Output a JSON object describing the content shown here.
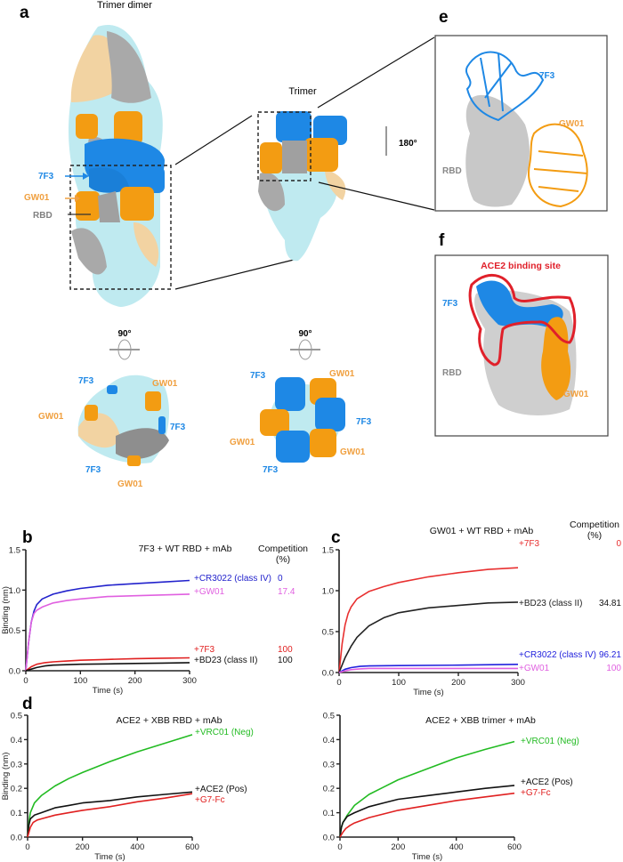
{
  "panels": {
    "a": {
      "letter": "a",
      "trimer_dimer": "Trimer dimer",
      "trimer": "Trimer",
      "rot180": "180°",
      "rot90_left": "90°",
      "rot90_right": "90°",
      "side_labels": {
        "ab1": "7F3",
        "ab2": "GW01",
        "rbd": "RBD"
      },
      "top_left_labels": [
        "7F3",
        "GW01",
        "GW01",
        "7F3",
        "7F3",
        "GW01"
      ],
      "top_right_labels": [
        "7F3",
        "GW01",
        "7F3",
        "GW01",
        "GW01",
        "7F3"
      ]
    },
    "e": {
      "letter": "e",
      "ab1": "7F3",
      "ab2": "GW01",
      "rbd": "RBD"
    },
    "f": {
      "letter": "f",
      "site": "ACE2 binding site",
      "ab1": "7F3",
      "ab2": "GW01",
      "rbd": "RBD"
    }
  },
  "colors": {
    "7F3": "#1e88e5",
    "GW01": "#f39c12",
    "RBD": "#9e9e9e",
    "spike_a": "#bfeaf0",
    "spike_b": "#f2d3a2",
    "site": "#e0202a"
  },
  "chart_data": [
    {
      "id": "b",
      "letter": "b",
      "type": "line",
      "title": "7F3 + WT RBD + mAb",
      "xlabel": "Time (s)",
      "ylabel": "Binding (nm)",
      "xlim": [
        0,
        300
      ],
      "ylim": [
        0,
        1.5
      ],
      "xticks": [
        "0",
        "100",
        "200",
        "300"
      ],
      "yticks": [
        "0.0",
        "0.5",
        "1.0",
        "1.5"
      ],
      "competition_header": [
        "Competition",
        "(%)"
      ],
      "series": [
        {
          "name": "+CR3022 (class IV)",
          "color": "#2222cc",
          "competition": "0",
          "x": [
            0,
            5,
            10,
            15,
            20,
            30,
            50,
            75,
            100,
            150,
            200,
            250,
            300
          ],
          "y": [
            0,
            0.35,
            0.6,
            0.74,
            0.82,
            0.89,
            0.95,
            0.99,
            1.02,
            1.06,
            1.08,
            1.1,
            1.12
          ]
        },
        {
          "name": "+GW01",
          "color": "#e060e0",
          "competition": "17.4",
          "x": [
            0,
            5,
            10,
            15,
            20,
            30,
            50,
            75,
            100,
            150,
            200,
            250,
            300
          ],
          "y": [
            0,
            0.35,
            0.6,
            0.71,
            0.75,
            0.79,
            0.84,
            0.87,
            0.89,
            0.92,
            0.93,
            0.94,
            0.95
          ]
        },
        {
          "name": "+7F3",
          "color": "#e02020",
          "competition": "100",
          "x": [
            0,
            10,
            20,
            35,
            50,
            75,
            100,
            150,
            200,
            250,
            300
          ],
          "y": [
            0,
            0.05,
            0.08,
            0.1,
            0.11,
            0.12,
            0.13,
            0.14,
            0.15,
            0.155,
            0.16
          ]
        },
        {
          "name": "+BD23 (class II)",
          "color": "#111111",
          "competition": "100",
          "x": [
            0,
            10,
            20,
            35,
            50,
            75,
            100,
            150,
            200,
            250,
            300
          ],
          "y": [
            0,
            0.02,
            0.04,
            0.06,
            0.07,
            0.075,
            0.08,
            0.085,
            0.09,
            0.095,
            0.1
          ]
        }
      ]
    },
    {
      "id": "c",
      "letter": "c",
      "type": "line",
      "title": "GW01 + WT RBD + mAb",
      "xlabel": "Time (s)",
      "ylabel": "",
      "xlim": [
        0,
        300
      ],
      "ylim": [
        0,
        1.5
      ],
      "xticks": [
        "0",
        "100",
        "200",
        "300"
      ],
      "yticks": [
        "0.0",
        "0.5",
        "1.0",
        "1.5"
      ],
      "competition_header": [
        "Competition",
        "(%)"
      ],
      "series": [
        {
          "name": "+7F3",
          "color": "#e83030",
          "competition": "0",
          "x": [
            0,
            5,
            10,
            15,
            20,
            30,
            50,
            75,
            100,
            150,
            200,
            250,
            300
          ],
          "y": [
            0,
            0.35,
            0.58,
            0.72,
            0.8,
            0.9,
            0.99,
            1.05,
            1.1,
            1.17,
            1.22,
            1.26,
            1.28
          ]
        },
        {
          "name": "+BD23 (class II)",
          "color": "#222222",
          "competition": "34.81",
          "x": [
            0,
            10,
            20,
            30,
            50,
            75,
            100,
            150,
            200,
            250,
            300
          ],
          "y": [
            0,
            0.18,
            0.32,
            0.43,
            0.57,
            0.67,
            0.73,
            0.79,
            0.82,
            0.85,
            0.86
          ]
        },
        {
          "name": "+CR3022 (class IV)",
          "color": "#2222dd",
          "competition": "96.21",
          "x": [
            0,
            10,
            20,
            35,
            50,
            100,
            200,
            300
          ],
          "y": [
            0,
            0.04,
            0.06,
            0.075,
            0.08,
            0.085,
            0.09,
            0.1
          ]
        },
        {
          "name": "+GW01",
          "color": "#e060e0",
          "competition": "100",
          "x": [
            0,
            10,
            20,
            35,
            50,
            100,
            200,
            300
          ],
          "y": [
            0,
            0.02,
            0.035,
            0.045,
            0.05,
            0.05,
            0.05,
            0.05
          ]
        }
      ]
    },
    {
      "id": "d1",
      "letter": "d",
      "type": "line",
      "title": "ACE2 + XBB RBD + mAb",
      "xlabel": "Time (s)",
      "ylabel": "Binding (nm)",
      "xlim": [
        0,
        600
      ],
      "ylim": [
        0,
        0.5
      ],
      "xticks": [
        "0",
        "200",
        "400",
        "600"
      ],
      "yticks": [
        "0.0",
        "0.1",
        "0.2",
        "0.3",
        "0.4",
        "0.5"
      ],
      "series": [
        {
          "name": "+VRC01 (Neg)",
          "color": "#22bb22",
          "x": [
            0,
            5,
            10,
            25,
            50,
            100,
            150,
            200,
            300,
            400,
            500,
            600
          ],
          "y": [
            0,
            0.06,
            0.1,
            0.14,
            0.17,
            0.21,
            0.24,
            0.265,
            0.31,
            0.35,
            0.385,
            0.42
          ]
        },
        {
          "name": "+ACE2 (Pos)",
          "color": "#111111",
          "x": [
            0,
            5,
            10,
            25,
            50,
            100,
            150,
            200,
            300,
            400,
            500,
            600
          ],
          "y": [
            0,
            0.05,
            0.075,
            0.09,
            0.1,
            0.12,
            0.13,
            0.14,
            0.15,
            0.165,
            0.175,
            0.185
          ]
        },
        {
          "name": "+G7-Fc",
          "color": "#e02020",
          "x": [
            0,
            10,
            20,
            35,
            50,
            100,
            150,
            200,
            300,
            400,
            500,
            600
          ],
          "y": [
            0,
            0.04,
            0.06,
            0.07,
            0.075,
            0.09,
            0.1,
            0.11,
            0.125,
            0.145,
            0.16,
            0.178
          ]
        }
      ]
    },
    {
      "id": "d2",
      "letter": "",
      "type": "line",
      "title": "ACE2 + XBB trimer + mAb",
      "xlabel": "Time (s)",
      "ylabel": "",
      "xlim": [
        0,
        600
      ],
      "ylim": [
        0,
        0.5
      ],
      "xticks": [
        "0",
        "200",
        "400",
        "600"
      ],
      "yticks": [
        "0.0",
        "0.1",
        "0.2",
        "0.3",
        "0.4",
        "0.5"
      ],
      "series": [
        {
          "name": "+VRC01 (Neg)",
          "color": "#22bb22",
          "x": [
            0,
            5,
            10,
            25,
            50,
            100,
            150,
            200,
            300,
            400,
            500,
            600
          ],
          "y": [
            0,
            0.04,
            0.06,
            0.09,
            0.13,
            0.175,
            0.205,
            0.235,
            0.28,
            0.325,
            0.36,
            0.392
          ]
        },
        {
          "name": "+ACE2 (Pos)",
          "color": "#111111",
          "x": [
            0,
            5,
            10,
            25,
            50,
            100,
            150,
            200,
            300,
            400,
            500,
            600
          ],
          "y": [
            0,
            0.04,
            0.06,
            0.085,
            0.1,
            0.125,
            0.14,
            0.155,
            0.17,
            0.185,
            0.2,
            0.212
          ]
        },
        {
          "name": "+G7-Fc",
          "color": "#e02020",
          "x": [
            0,
            10,
            20,
            35,
            50,
            100,
            150,
            200,
            300,
            400,
            500,
            600
          ],
          "y": [
            0,
            0.02,
            0.035,
            0.048,
            0.058,
            0.08,
            0.095,
            0.11,
            0.13,
            0.15,
            0.165,
            0.18
          ]
        }
      ]
    }
  ]
}
